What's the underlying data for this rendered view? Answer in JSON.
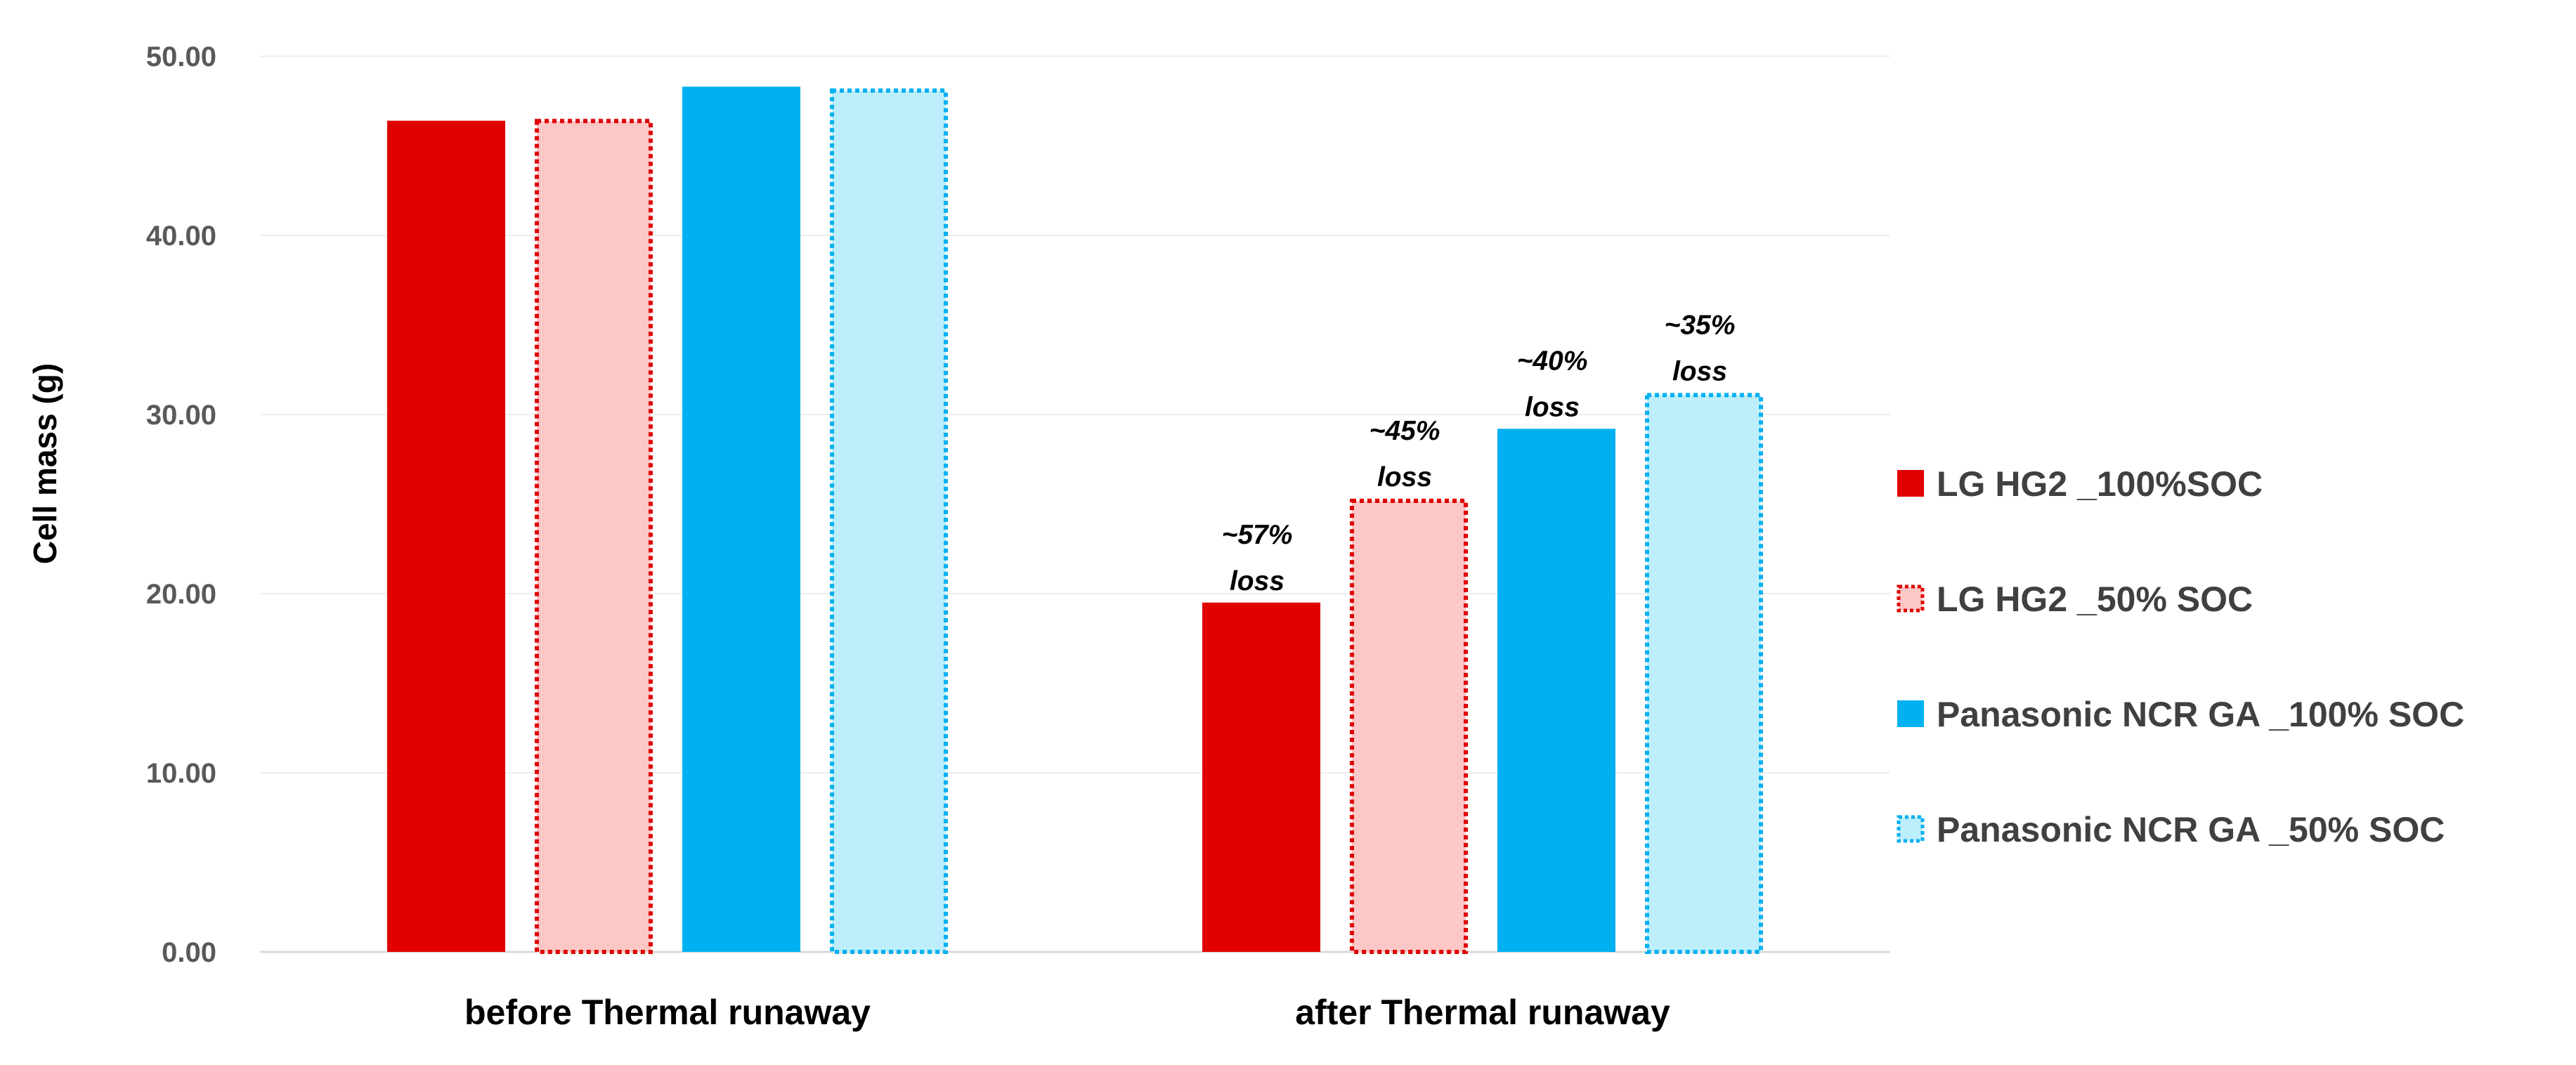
{
  "chart_data": {
    "type": "bar",
    "title": "",
    "xlabel": "",
    "ylabel": "Cell mass (g)",
    "ylim": [
      0,
      50
    ],
    "yticks": [
      "0.00",
      "10.00",
      "20.00",
      "30.00",
      "40.00",
      "50.00"
    ],
    "grid": true,
    "legend_position": "right",
    "categories": [
      "before Thermal runaway",
      "after Thermal runaway"
    ],
    "series": [
      {
        "name": "LG HG2 _100%SOC",
        "values": [
          46.4,
          19.5
        ],
        "fill": "#e00000",
        "stroke": "#e00000",
        "dashed": false
      },
      {
        "name": "LG HG2 _50% SOC",
        "values": [
          46.5,
          25.3
        ],
        "fill": "#fdc7c7",
        "stroke": "#e00000",
        "dashed": true
      },
      {
        "name": "Panasonic NCR GA _100% SOC",
        "values": [
          48.3,
          29.2
        ],
        "fill": "#00b0f0",
        "stroke": "#00b0f0",
        "dashed": false
      },
      {
        "name": "Panasonic NCR GA _50% SOC",
        "values": [
          48.2,
          31.2
        ],
        "fill": "#bdeefb",
        "stroke": "#00b0f0",
        "dashed": true
      }
    ],
    "annotations": [
      {
        "category": 1,
        "series": 0,
        "lines": [
          "~57%",
          "loss"
        ]
      },
      {
        "category": 1,
        "series": 1,
        "lines": [
          "~45%",
          "loss"
        ]
      },
      {
        "category": 1,
        "series": 2,
        "lines": [
          "~40%",
          "loss"
        ]
      },
      {
        "category": 1,
        "series": 3,
        "lines": [
          "~35%",
          "loss"
        ]
      }
    ]
  }
}
